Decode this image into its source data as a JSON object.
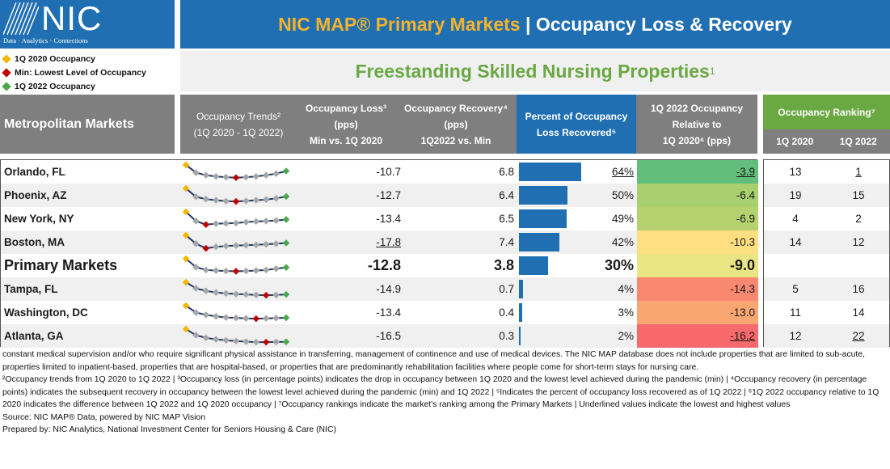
{
  "logo": {
    "wordmark": "NIC",
    "tagline": "Data · Analytics · Connections"
  },
  "legend": [
    {
      "label": "1Q 2020 Occupancy",
      "color": "#f2b700"
    },
    {
      "label": "Min:  Lowest Level of Occupancy",
      "color": "#c00000"
    },
    {
      "label": "1Q 2022 Occupancy",
      "color": "#4aaa4a"
    }
  ],
  "title": {
    "part1": "NIC MAP® Primary Markets",
    "separator": " | ",
    "part2": "Occupancy Loss & Recovery"
  },
  "subtitle": {
    "text": "Freestanding Skilled Nursing Properties",
    "sup": "1"
  },
  "headers": {
    "metro": "Metropolitan Markets",
    "trend": [
      "Occupancy Trends²",
      "(1Q 2020 - 1Q 2022)"
    ],
    "loss": [
      "Occupancy Loss³",
      "(pps)",
      "Min vs. 1Q 2020"
    ],
    "recovery": [
      "Occupancy Recovery⁴",
      "(pps)",
      "1Q2022 vs. Min"
    ],
    "pct": [
      "Percent of Occupancy",
      "Loss Recovered⁵"
    ],
    "relative": [
      "1Q 2022 Occupancy",
      "Relative to",
      "1Q 2020⁶ (pps)"
    ],
    "ranking": "Occupancy Ranking⁷",
    "rank_2020": "1Q 2020",
    "rank_2022": "1Q 2022"
  },
  "colors": {
    "blue": "#1f6fb2",
    "gray": "#7f7f7f",
    "green": "#6aa843",
    "gold": "#f7b32b"
  },
  "rows": [
    {
      "name": "Orlando, FL",
      "loss": "-10.7",
      "recovery": "6.8",
      "pct": "64%",
      "pct_value": 64,
      "relative": "-3.9",
      "rel_color": "#63be7b",
      "rank2020": "13",
      "rank2022": "1",
      "pct_ul": true,
      "rel_ul": true,
      "loss_ul": false,
      "r22_ul": true,
      "spark": [
        0.95,
        0.45,
        0.28,
        0.2,
        0.15,
        0.12,
        0.15,
        0.2,
        0.28,
        0.38,
        0.55
      ],
      "min_idx": 5
    },
    {
      "name": "Phoenix, AZ",
      "loss": "-12.7",
      "recovery": "6.4",
      "pct": "50%",
      "pct_value": 50,
      "relative": "-6.4",
      "rel_color": "#a9d06f",
      "rank2020": "19",
      "rank2022": "15",
      "spark": [
        0.95,
        0.4,
        0.25,
        0.18,
        0.12,
        0.1,
        0.13,
        0.18,
        0.22,
        0.3,
        0.42
      ],
      "min_idx": 5
    },
    {
      "name": "New York, NY",
      "loss": "-13.4",
      "recovery": "6.5",
      "pct": "49%",
      "pct_value": 49,
      "relative": "-6.9",
      "rel_color": "#b4d36f",
      "rank2020": "4",
      "rank2022": "2",
      "spark": [
        0.95,
        0.35,
        0.12,
        0.18,
        0.2,
        0.22,
        0.28,
        0.32,
        0.35,
        0.38,
        0.45
      ],
      "min_idx": 2
    },
    {
      "name": "Boston, MA",
      "loss": "-17.8",
      "recovery": "7.4",
      "pct": "42%",
      "pct_value": 42,
      "relative": "-10.3",
      "rel_color": "#fedf81",
      "rank2020": "14",
      "rank2022": "12",
      "loss_ul": true,
      "spark": [
        0.95,
        0.4,
        0.1,
        0.2,
        0.25,
        0.28,
        0.3,
        0.33,
        0.36,
        0.4,
        0.45
      ],
      "min_idx": 2
    },
    {
      "name": "Primary Markets",
      "loss": "-12.8",
      "recovery": "3.8",
      "pct": "30%",
      "pct_value": 30,
      "relative": "-9.0",
      "rel_color": "#eae583",
      "rank2020": "",
      "rank2022": "",
      "primary": true,
      "spark": [
        0.95,
        0.4,
        0.22,
        0.18,
        0.15,
        0.13,
        0.15,
        0.18,
        0.22,
        0.3,
        0.38
      ],
      "min_idx": 5
    },
    {
      "name": "Tampa, FL",
      "loss": "-14.9",
      "recovery": "0.7",
      "pct": "4%",
      "pct_value": 4,
      "relative": "-14.3",
      "rel_color": "#f8886f",
      "rank2020": "5",
      "rank2022": "16",
      "spark": [
        0.95,
        0.55,
        0.38,
        0.28,
        0.22,
        0.18,
        0.15,
        0.12,
        0.1,
        0.12,
        0.15
      ],
      "min_idx": 8
    },
    {
      "name": "Washington, DC",
      "loss": "-13.4",
      "recovery": "0.4",
      "pct": "3%",
      "pct_value": 3,
      "relative": "-13.0",
      "rel_color": "#f9a673",
      "rank2020": "11",
      "rank2022": "14",
      "spark": [
        0.95,
        0.5,
        0.35,
        0.25,
        0.18,
        0.15,
        0.12,
        0.1,
        0.12,
        0.14,
        0.16
      ],
      "min_idx": 7
    },
    {
      "name": "Atlanta, GA",
      "loss": "-16.5",
      "recovery": "0.3",
      "pct": "2%",
      "pct_value": 2,
      "relative": "-16.2",
      "rel_color": "#f8696b",
      "rank2020": "12",
      "rank2022": "22",
      "rel_ul": true,
      "r22_ul": true,
      "spark": [
        0.95,
        0.55,
        0.38,
        0.28,
        0.22,
        0.17,
        0.13,
        0.1,
        0.1,
        0.11,
        0.12
      ],
      "min_idx": 8
    }
  ],
  "notes": [
    "constant medical supervision and/or who require significant physical assistance in transferring, management of continence and use of medical devices. The NIC MAP database does not include properties that are limited to sub-acute, properties limited to inpatient-based, properties that are hospital-based, or properties that are predominantly rehabilitation facilities where people come for short-term stays for nursing care.",
    "²Occupancy trends from 1Q 2020 to 1Q 2022 | ³Occupancy loss (in percentage points) indicates the drop in occupancy between 1Q 2020 and the lowest level achieved during the pandemic (min) | ⁴Occupancy recovery (in percentage points) indicates the subsequent recovery in occupancy between the lowest level achieved during the pandemic (min) and 1Q 2022 | ⁵Indicates the percent of occupancy loss recovered as of 1Q 2022 | ⁶1Q 2022 occupancy relative to 1Q 2020 indicates the difference between 1Q 2022 and 1Q 2020 occupancy | ⁷Occupancy rankings indicate the market's ranking among the Primary Markets | Underlined values indicate the lowest and highest values",
    "Source: NIC MAP® Data, powered by NIC MAP Vision",
    "Prepared by: NIC Analytics, National Investment Center for Seniors Housing & Care (NIC)"
  ]
}
